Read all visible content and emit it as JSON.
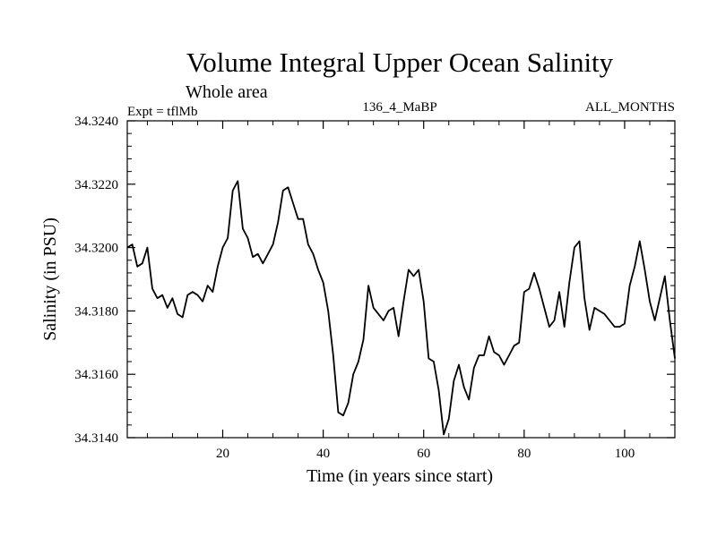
{
  "chart_data": {
    "type": "line",
    "title": "Volume Integral Upper Ocean Salinity",
    "subtitle": "Whole area",
    "left_label": "Expt = tflMb",
    "center_label": "136_4_MaBP",
    "right_label": "ALL_MONTHS",
    "xlabel": "Time (in years since start)",
    "ylabel": "Salinity (in PSU)",
    "xlim": [
      1,
      110
    ],
    "ylim": [
      34.314,
      34.324
    ],
    "x_ticks": [
      20,
      40,
      60,
      80,
      100
    ],
    "x_tick_labels": [
      "20",
      "40",
      "60",
      "80",
      "100"
    ],
    "y_ticks": [
      34.314,
      34.316,
      34.318,
      34.32,
      34.322,
      34.324
    ],
    "y_tick_labels": [
      "34.3140",
      "34.3160",
      "34.3180",
      "34.3200",
      "34.3220",
      "34.3240"
    ],
    "series": [
      {
        "name": "salinity",
        "color": "#000000",
        "x": [
          1,
          2,
          3,
          4,
          5,
          6,
          7,
          8,
          9,
          10,
          11,
          12,
          13,
          14,
          15,
          16,
          17,
          18,
          19,
          20,
          21,
          22,
          23,
          24,
          25,
          26,
          27,
          28,
          29,
          30,
          31,
          32,
          33,
          34,
          35,
          36,
          37,
          38,
          39,
          40,
          41,
          42,
          43,
          44,
          45,
          46,
          47,
          48,
          49,
          50,
          51,
          52,
          53,
          54,
          55,
          56,
          57,
          58,
          59,
          60,
          61,
          62,
          63,
          64,
          65,
          66,
          67,
          68,
          69,
          70,
          71,
          72,
          73,
          74,
          75,
          76,
          77,
          78,
          79,
          80,
          81,
          82,
          83,
          84,
          85,
          86,
          87,
          88,
          89,
          90,
          91,
          92,
          93,
          94,
          95,
          96,
          97,
          98,
          99,
          100,
          101,
          102,
          103,
          104,
          105,
          106,
          107,
          108,
          109,
          110
        ],
        "values": [
          34.32,
          34.3201,
          34.3194,
          34.3195,
          34.32,
          34.3187,
          34.3184,
          34.3185,
          34.3181,
          34.3184,
          34.3179,
          34.3178,
          34.3185,
          34.3186,
          34.3185,
          34.3183,
          34.3188,
          34.3186,
          34.3194,
          34.32,
          34.3203,
          34.3218,
          34.3221,
          34.3206,
          34.3203,
          34.3197,
          34.3198,
          34.3195,
          34.3198,
          34.3201,
          34.3208,
          34.3218,
          34.3219,
          34.3214,
          34.3209,
          34.3209,
          34.3201,
          34.3198,
          34.3193,
          34.3189,
          34.318,
          34.3166,
          34.3148,
          34.3147,
          34.3151,
          34.316,
          34.3164,
          34.3171,
          34.3188,
          34.3181,
          34.3179,
          34.3177,
          34.318,
          34.3181,
          34.3172,
          34.3183,
          34.3193,
          34.3191,
          34.3193,
          34.3183,
          34.3165,
          34.3164,
          34.3155,
          34.3141,
          34.3146,
          34.3158,
          34.3163,
          34.3156,
          34.3152,
          34.3162,
          34.3166,
          34.3166,
          34.3172,
          34.3167,
          34.3166,
          34.3163,
          34.3166,
          34.3169,
          34.317,
          34.3186,
          34.3187,
          34.3192,
          34.3187,
          34.3181,
          34.3175,
          34.3177,
          34.3186,
          34.3175,
          34.3189,
          34.32,
          34.3202,
          34.3184,
          34.3174,
          34.3181,
          34.318,
          34.3179,
          34.3177,
          34.3175,
          34.3175,
          34.3176,
          34.3188,
          34.3194,
          34.3202,
          34.3193,
          34.3183,
          34.3177,
          34.3184,
          34.3191,
          34.3177,
          34.3165
        ]
      }
    ]
  }
}
